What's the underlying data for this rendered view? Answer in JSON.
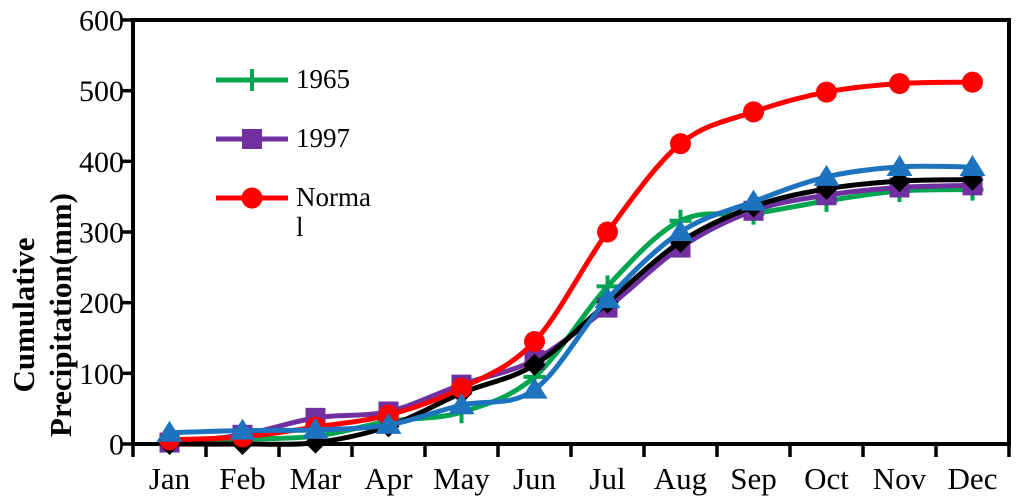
{
  "figure": {
    "background": "#FFFFFF",
    "frame_color": "#000000"
  },
  "chart_data": {
    "type": "line",
    "title": "",
    "xlabel": "",
    "ylabel": "Cumulative Precipitation(mm)",
    "ylabel_lines": [
      "Cumulative",
      "Precipitation(mm)"
    ],
    "x_categories": [
      "Jan",
      "Feb",
      "Mar",
      "Apr",
      "May",
      "Jun",
      "Jul",
      "Aug",
      "Sep",
      "Oct",
      "Nov",
      "Dec"
    ],
    "ylim": [
      0,
      600
    ],
    "y_ticks": [
      0,
      100,
      200,
      300,
      400,
      500,
      600
    ],
    "grid": false,
    "legend_position": "upper-left-inside",
    "series": [
      {
        "key": "1965",
        "name": "1965",
        "in_legend": true,
        "label_lines": [
          "1965"
        ],
        "color": "#00A64F",
        "marker": "plus",
        "values": [
          4,
          7,
          11,
          32,
          45,
          95,
          223,
          316,
          326,
          344,
          358,
          360
        ]
      },
      {
        "key": "1997",
        "name": "1997",
        "in_legend": true,
        "label_lines": [
          "1997"
        ],
        "color": "#7030A0",
        "marker": "square",
        "values": [
          2,
          13,
          37,
          46,
          84,
          119,
          193,
          278,
          330,
          352,
          363,
          366
        ]
      },
      {
        "key": "black-diamond",
        "name": "",
        "in_legend": false,
        "label_lines": [],
        "color": "#000000",
        "marker": "diamond",
        "values": [
          0,
          0,
          2,
          25,
          72,
          112,
          200,
          286,
          336,
          361,
          372,
          374
        ]
      },
      {
        "key": "normal",
        "name": "Normal",
        "in_legend": true,
        "label_lines": [
          "Norma",
          "l"
        ],
        "color": "#FF0000",
        "marker": "circle",
        "values": [
          6,
          10,
          24,
          41,
          79,
          145,
          300,
          425,
          470,
          498,
          510,
          512
        ]
      },
      {
        "key": "blue-triangle",
        "name": "",
        "in_legend": false,
        "label_lines": [],
        "color": "#1E73BE",
        "marker": "triangle-up",
        "values": [
          16,
          19,
          20,
          27,
          55,
          77,
          205,
          300,
          343,
          378,
          392,
          392
        ]
      }
    ]
  }
}
